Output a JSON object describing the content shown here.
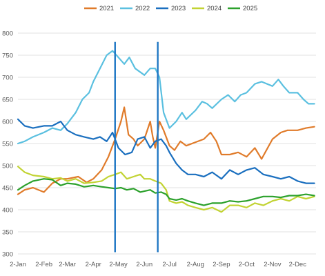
{
  "chart_data": {
    "type": "line",
    "title": "",
    "xlabel": "",
    "ylabel": "",
    "ylim": [
      300,
      800
    ],
    "y_ticks": [
      300,
      350,
      400,
      450,
      500,
      550,
      600,
      650,
      700,
      750,
      800
    ],
    "x_ticks": [
      "2-Jan",
      "2-Feb",
      "2-Mar",
      "2-Apr",
      "2-May",
      "2-Jun",
      "2-Jul",
      "2-Aug",
      "2-Sep",
      "2-Oct",
      "2-Nov",
      "2-Dec"
    ],
    "grid": "horizontal",
    "legend_position": "top",
    "vertical_markers": [
      {
        "x": "28-Apr",
        "color": "#1f77c4"
      },
      {
        "x": "18-Jun",
        "color": "#1f77c4"
      }
    ],
    "series": [
      {
        "name": "2021",
        "color": "#e07b2a",
        "points": [
          [
            "2-Jan",
            435
          ],
          [
            "10-Jan",
            445
          ],
          [
            "20-Jan",
            450
          ],
          [
            "2-Feb",
            440
          ],
          [
            "12-Feb",
            460
          ],
          [
            "22-Feb",
            470
          ],
          [
            "2-Mar",
            470
          ],
          [
            "15-Mar",
            475
          ],
          [
            "25-Mar",
            462
          ],
          [
            "2-Apr",
            470
          ],
          [
            "12-Apr",
            490
          ],
          [
            "20-Apr",
            520
          ],
          [
            "28-Apr",
            560
          ],
          [
            "5-May",
            600
          ],
          [
            "9-May",
            632
          ],
          [
            "14-May",
            570
          ],
          [
            "20-May",
            560
          ],
          [
            "25-May",
            545
          ],
          [
            "2-Jun",
            560
          ],
          [
            "9-Jun",
            600
          ],
          [
            "12-Jun",
            565
          ],
          [
            "15-Jun",
            540
          ],
          [
            "20-Jun",
            600
          ],
          [
            "25-Jun",
            580
          ],
          [
            "2-Jul",
            545
          ],
          [
            "8-Jul",
            535
          ],
          [
            "15-Jul",
            555
          ],
          [
            "22-Jul",
            545
          ],
          [
            "2-Aug",
            553
          ],
          [
            "12-Aug",
            560
          ],
          [
            "20-Aug",
            575
          ],
          [
            "27-Aug",
            555
          ],
          [
            "2-Sep",
            525
          ],
          [
            "12-Sep",
            525
          ],
          [
            "22-Sep",
            530
          ],
          [
            "2-Oct",
            520
          ],
          [
            "12-Oct",
            540
          ],
          [
            "20-Oct",
            515
          ],
          [
            "2-Nov",
            560
          ],
          [
            "12-Nov",
            575
          ],
          [
            "20-Nov",
            580
          ],
          [
            "2-Dec",
            580
          ],
          [
            "12-Dec",
            585
          ],
          [
            "22-Dec",
            588
          ]
        ]
      },
      {
        "name": "2022",
        "color": "#5bc0e0",
        "points": [
          [
            "2-Jan",
            550
          ],
          [
            "10-Jan",
            555
          ],
          [
            "20-Jan",
            565
          ],
          [
            "2-Feb",
            575
          ],
          [
            "12-Feb",
            585
          ],
          [
            "22-Feb",
            580
          ],
          [
            "2-Mar",
            595
          ],
          [
            "12-Mar",
            620
          ],
          [
            "20-Mar",
            650
          ],
          [
            "28-Mar",
            665
          ],
          [
            "2-Apr",
            690
          ],
          [
            "10-Apr",
            720
          ],
          [
            "18-Apr",
            750
          ],
          [
            "25-Apr",
            760
          ],
          [
            "2-May",
            745
          ],
          [
            "9-May",
            730
          ],
          [
            "15-May",
            745
          ],
          [
            "22-May",
            720
          ],
          [
            "2-Jun",
            705
          ],
          [
            "9-Jun",
            720
          ],
          [
            "15-Jun",
            720
          ],
          [
            "20-Jun",
            700
          ],
          [
            "25-Jun",
            620
          ],
          [
            "2-Jul",
            585
          ],
          [
            "10-Jul",
            600
          ],
          [
            "17-Jul",
            620
          ],
          [
            "22-Jul",
            605
          ],
          [
            "2-Aug",
            625
          ],
          [
            "10-Aug",
            645
          ],
          [
            "16-Aug",
            640
          ],
          [
            "22-Aug",
            630
          ],
          [
            "2-Sep",
            650
          ],
          [
            "10-Sep",
            660
          ],
          [
            "18-Sep",
            645
          ],
          [
            "25-Sep",
            660
          ],
          [
            "2-Oct",
            665
          ],
          [
            "12-Oct",
            685
          ],
          [
            "20-Oct",
            690
          ],
          [
            "2-Nov",
            680
          ],
          [
            "9-Nov",
            695
          ],
          [
            "15-Nov",
            680
          ],
          [
            "22-Nov",
            665
          ],
          [
            "2-Dec",
            665
          ],
          [
            "9-Dec",
            650
          ],
          [
            "15-Dec",
            640
          ],
          [
            "22-Dec",
            640
          ]
        ]
      },
      {
        "name": "2023",
        "color": "#1a6fbf",
        "points": [
          [
            "2-Jan",
            605
          ],
          [
            "10-Jan",
            590
          ],
          [
            "20-Jan",
            585
          ],
          [
            "2-Feb",
            590
          ],
          [
            "12-Feb",
            590
          ],
          [
            "22-Feb",
            600
          ],
          [
            "2-Mar",
            580
          ],
          [
            "12-Mar",
            570
          ],
          [
            "22-Mar",
            565
          ],
          [
            "2-Apr",
            560
          ],
          [
            "10-Apr",
            565
          ],
          [
            "18-Apr",
            555
          ],
          [
            "25-Apr",
            575
          ],
          [
            "2-May",
            540
          ],
          [
            "10-May",
            525
          ],
          [
            "18-May",
            530
          ],
          [
            "25-May",
            560
          ],
          [
            "2-Jun",
            565
          ],
          [
            "9-Jun",
            540
          ],
          [
            "15-Jun",
            555
          ],
          [
            "22-Jun",
            560
          ],
          [
            "28-Jun",
            545
          ],
          [
            "2-Jul",
            530
          ],
          [
            "10-Jul",
            505
          ],
          [
            "17-Jul",
            490
          ],
          [
            "24-Jul",
            480
          ],
          [
            "2-Aug",
            480
          ],
          [
            "12-Aug",
            475
          ],
          [
            "22-Aug",
            485
          ],
          [
            "2-Sep",
            470
          ],
          [
            "12-Sep",
            490
          ],
          [
            "22-Sep",
            480
          ],
          [
            "2-Oct",
            490
          ],
          [
            "12-Oct",
            495
          ],
          [
            "22-Oct",
            480
          ],
          [
            "2-Nov",
            475
          ],
          [
            "12-Nov",
            470
          ],
          [
            "22-Nov",
            475
          ],
          [
            "2-Dec",
            465
          ],
          [
            "12-Dec",
            460
          ],
          [
            "22-Dec",
            460
          ]
        ]
      },
      {
        "name": "2024",
        "color": "#c2d333",
        "points": [
          [
            "2-Jan",
            498
          ],
          [
            "10-Jan",
            485
          ],
          [
            "20-Jan",
            478
          ],
          [
            "2-Feb",
            475
          ],
          [
            "12-Feb",
            470
          ],
          [
            "22-Feb",
            472
          ],
          [
            "2-Mar",
            465
          ],
          [
            "12-Mar",
            470
          ],
          [
            "22-Mar",
            460
          ],
          [
            "2-Apr",
            462
          ],
          [
            "12-Apr",
            465
          ],
          [
            "20-Apr",
            475
          ],
          [
            "28-Apr",
            480
          ],
          [
            "5-May",
            485
          ],
          [
            "12-May",
            470
          ],
          [
            "20-May",
            475
          ],
          [
            "28-May",
            480
          ],
          [
            "2-Jun",
            470
          ],
          [
            "9-Jun",
            470
          ],
          [
            "15-Jun",
            465
          ],
          [
            "22-Jun",
            460
          ],
          [
            "28-Jun",
            445
          ],
          [
            "2-Jul",
            420
          ],
          [
            "10-Jul",
            415
          ],
          [
            "17-Jul",
            418
          ],
          [
            "24-Jul",
            410
          ],
          [
            "2-Aug",
            405
          ],
          [
            "12-Aug",
            400
          ],
          [
            "22-Aug",
            405
          ],
          [
            "2-Sep",
            395
          ],
          [
            "12-Sep",
            410
          ],
          [
            "22-Sep",
            410
          ],
          [
            "2-Oct",
            405
          ],
          [
            "12-Oct",
            415
          ],
          [
            "22-Oct",
            410
          ],
          [
            "2-Nov",
            420
          ],
          [
            "12-Nov",
            425
          ],
          [
            "22-Nov",
            420
          ],
          [
            "2-Dec",
            430
          ],
          [
            "12-Dec",
            425
          ],
          [
            "22-Dec",
            430
          ]
        ]
      },
      {
        "name": "2025",
        "color": "#2ca12c",
        "points": [
          [
            "2-Jan",
            445
          ],
          [
            "10-Jan",
            455
          ],
          [
            "20-Jan",
            465
          ],
          [
            "2-Feb",
            470
          ],
          [
            "12-Feb",
            468
          ],
          [
            "22-Feb",
            455
          ],
          [
            "2-Mar",
            460
          ],
          [
            "12-Mar",
            458
          ],
          [
            "22-Mar",
            452
          ],
          [
            "2-Apr",
            455
          ],
          [
            "12-Apr",
            452
          ],
          [
            "20-Apr",
            450
          ],
          [
            "28-Apr",
            448
          ],
          [
            "5-May",
            450
          ],
          [
            "12-May",
            445
          ],
          [
            "20-May",
            448
          ],
          [
            "28-May",
            440
          ],
          [
            "2-Jun",
            442
          ],
          [
            "9-Jun",
            445
          ],
          [
            "15-Jun",
            438
          ],
          [
            "22-Jun",
            440
          ],
          [
            "28-Jun",
            435
          ],
          [
            "2-Jul",
            425
          ],
          [
            "10-Jul",
            422
          ],
          [
            "17-Jul",
            425
          ],
          [
            "24-Jul",
            420
          ],
          [
            "2-Aug",
            415
          ],
          [
            "12-Aug",
            410
          ],
          [
            "22-Aug",
            415
          ],
          [
            "2-Sep",
            415
          ],
          [
            "12-Sep",
            420
          ],
          [
            "22-Sep",
            418
          ],
          [
            "2-Oct",
            420
          ],
          [
            "12-Oct",
            425
          ],
          [
            "22-Oct",
            430
          ],
          [
            "2-Nov",
            430
          ],
          [
            "12-Nov",
            428
          ],
          [
            "22-Nov",
            432
          ],
          [
            "2-Dec",
            432
          ],
          [
            "12-Dec",
            435
          ],
          [
            "22-Dec",
            432
          ]
        ]
      }
    ]
  }
}
